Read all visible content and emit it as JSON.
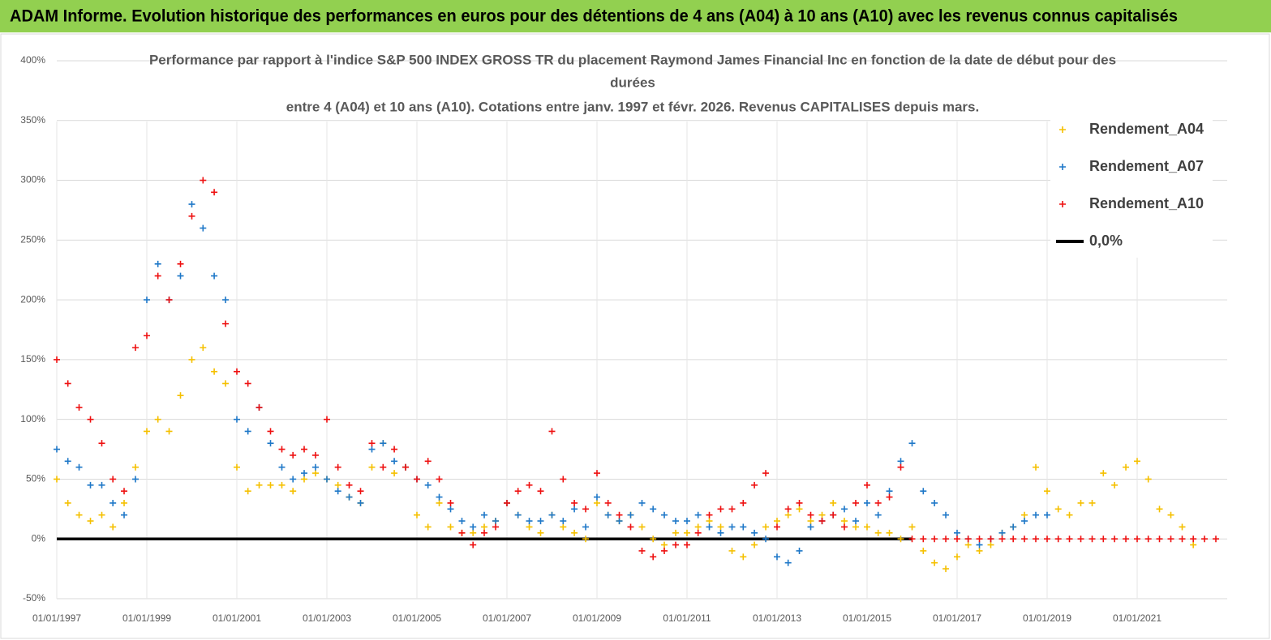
{
  "header": {
    "title": "ADAM Informe. Evolution historique des performances en euros pour des détentions de 4 ans (A04) à 10 ans (A10) avec les revenus connus capitalisés"
  },
  "chart_data": {
    "type": "scatter",
    "title_lines": [
      "Performance par rapport à l'indice S&P 500 INDEX GROSS TR  du placement Raymond James Financial Inc en fonction de la date de début pour des",
      "durées",
      "entre 4 (A04) et 10 ans (A10).  Cotations entre janv. 1997 et févr.  2026. Revenus CAPITALISES depuis mars."
    ],
    "x": [
      "1997-01-01",
      "1997-04-01",
      "1997-07-01",
      "1997-10-01",
      "1998-01-01",
      "1998-04-01",
      "1998-07-01",
      "1998-10-01",
      "1999-01-01",
      "1999-04-01",
      "1999-07-01",
      "1999-10-01",
      "2000-01-01",
      "2000-04-01",
      "2000-07-01",
      "2000-10-01",
      "2001-01-01",
      "2001-04-01",
      "2001-07-01",
      "2001-10-01",
      "2002-01-01",
      "2002-04-01",
      "2002-07-01",
      "2002-10-01",
      "2003-01-01",
      "2003-04-01",
      "2003-07-01",
      "2003-10-01",
      "2004-01-01",
      "2004-04-01",
      "2004-07-01",
      "2004-10-01",
      "2005-01-01",
      "2005-04-01",
      "2005-07-01",
      "2005-10-01",
      "2006-01-01",
      "2006-04-01",
      "2006-07-01",
      "2006-10-01",
      "2007-01-01",
      "2007-04-01",
      "2007-07-01",
      "2007-10-01",
      "2008-01-01",
      "2008-04-01",
      "2008-07-01",
      "2008-10-01",
      "2009-01-01",
      "2009-04-01",
      "2009-07-01",
      "2009-10-01",
      "2010-01-01",
      "2010-04-01",
      "2010-07-01",
      "2010-10-01",
      "2011-01-01",
      "2011-04-01",
      "2011-07-01",
      "2011-10-01",
      "2012-01-01",
      "2012-04-01",
      "2012-07-01",
      "2012-10-01",
      "2013-01-01",
      "2013-04-01",
      "2013-07-01",
      "2013-10-01",
      "2014-01-01",
      "2014-04-01",
      "2014-07-01",
      "2014-10-01",
      "2015-01-01",
      "2015-04-01",
      "2015-07-01",
      "2015-10-01",
      "2016-01-01",
      "2016-04-01",
      "2016-07-01",
      "2016-10-01",
      "2017-01-01",
      "2017-04-01",
      "2017-07-01",
      "2017-10-01",
      "2018-01-01",
      "2018-04-01",
      "2018-07-01",
      "2018-10-01",
      "2019-01-01",
      "2019-04-01",
      "2019-07-01",
      "2019-10-01",
      "2020-01-01",
      "2020-04-01",
      "2020-07-01",
      "2020-10-01",
      "2021-01-01",
      "2021-04-01",
      "2021-07-01",
      "2021-10-01",
      "2022-01-01",
      "2022-04-01",
      "2022-07-01",
      "2022-10-01"
    ],
    "series": [
      {
        "name": "Rendement_A04",
        "color": "#f5c000",
        "values": [
          50,
          30,
          20,
          15,
          20,
          10,
          30,
          60,
          90,
          100,
          90,
          120,
          150,
          160,
          140,
          130,
          60,
          40,
          45,
          45,
          45,
          40,
          50,
          55,
          50,
          45,
          35,
          30,
          60,
          80,
          55,
          60,
          20,
          10,
          30,
          10,
          5,
          5,
          10,
          15,
          30,
          20,
          10,
          5,
          20,
          10,
          5,
          0,
          30,
          20,
          15,
          20,
          10,
          0,
          -5,
          5,
          5,
          10,
          15,
          10,
          -10,
          -15,
          -5,
          10,
          15,
          20,
          25,
          15,
          20,
          30,
          15,
          10,
          10,
          5,
          5,
          0,
          10,
          -10,
          -20,
          -25,
          -15,
          -5,
          -10,
          -5,
          5,
          10,
          20,
          60,
          40,
          25,
          20,
          30,
          30,
          55,
          45,
          60,
          65,
          50,
          25,
          20,
          10,
          -5,
          null,
          null
        ]
      },
      {
        "name": "Rendement_A07",
        "color": "#1f78c8",
        "values": [
          75,
          65,
          60,
          45,
          45,
          30,
          20,
          50,
          200,
          230,
          200,
          220,
          280,
          260,
          220,
          200,
          100,
          90,
          110,
          80,
          60,
          50,
          55,
          60,
          50,
          40,
          35,
          30,
          75,
          80,
          65,
          60,
          50,
          45,
          35,
          25,
          15,
          10,
          20,
          15,
          30,
          20,
          15,
          15,
          20,
          15,
          25,
          10,
          35,
          20,
          15,
          20,
          30,
          25,
          20,
          15,
          15,
          20,
          10,
          5,
          10,
          10,
          5,
          0,
          -15,
          -20,
          -10,
          10,
          15,
          20,
          25,
          15,
          30,
          20,
          40,
          65,
          80,
          40,
          30,
          20,
          5,
          0,
          -5,
          0,
          5,
          10,
          15,
          20,
          20,
          null,
          null,
          null,
          null,
          null,
          null,
          null,
          null,
          null,
          null,
          null,
          null,
          null,
          null,
          null
        ]
      },
      {
        "name": "Rendement_A10",
        "color": "#ee1111",
        "values": [
          150,
          130,
          110,
          100,
          80,
          50,
          40,
          160,
          170,
          220,
          200,
          230,
          270,
          300,
          290,
          180,
          140,
          130,
          110,
          90,
          75,
          70,
          75,
          70,
          100,
          60,
          45,
          40,
          80,
          60,
          75,
          60,
          50,
          65,
          50,
          30,
          5,
          -5,
          5,
          10,
          30,
          40,
          45,
          40,
          90,
          50,
          30,
          25,
          55,
          30,
          20,
          10,
          -10,
          -15,
          -10,
          -5,
          -5,
          5,
          20,
          25,
          25,
          30,
          45,
          55,
          10,
          25,
          30,
          20,
          15,
          20,
          10,
          30,
          45,
          30,
          35,
          60,
          0,
          0,
          0,
          0,
          0,
          0,
          0,
          0,
          0,
          0,
          0,
          0,
          0,
          0,
          0,
          0,
          0,
          0,
          0,
          0,
          0,
          0,
          0,
          0,
          0,
          0,
          0,
          0
        ]
      },
      {
        "name": "0,0%",
        "type": "line",
        "color": "#000000",
        "values": [
          0,
          0,
          0,
          0,
          0,
          0,
          0,
          0,
          0,
          0,
          0,
          0,
          0,
          0,
          0,
          0,
          0,
          0,
          0,
          0,
          0,
          0,
          0,
          0,
          0,
          0,
          0,
          0,
          0,
          0,
          0,
          0,
          0,
          0,
          0,
          0,
          0,
          0,
          0,
          0,
          0,
          0,
          0,
          0,
          0,
          0,
          0,
          0,
          0,
          0,
          0,
          0,
          0,
          0,
          0,
          0,
          0,
          0,
          0,
          0,
          0,
          0,
          0,
          0,
          0,
          0,
          0,
          0,
          0,
          0,
          0,
          0,
          0,
          0,
          0,
          0,
          0,
          null,
          null,
          null,
          null,
          null,
          null,
          null,
          null,
          null,
          null,
          null,
          null,
          null,
          null,
          null,
          null,
          null,
          null,
          null,
          null,
          null,
          null,
          null,
          null,
          null,
          null,
          null
        ]
      }
    ],
    "xlim": [
      "1997-01-01",
      "2023-01-01"
    ],
    "xticks": [
      {
        "value": "1997-01-01",
        "label": "01/01/1997"
      },
      {
        "value": "1999-01-01",
        "label": "01/01/1999"
      },
      {
        "value": "2001-01-01",
        "label": "01/01/2001"
      },
      {
        "value": "2003-01-01",
        "label": "01/01/2003"
      },
      {
        "value": "2005-01-01",
        "label": "01/01/2005"
      },
      {
        "value": "2007-01-01",
        "label": "01/01/2007"
      },
      {
        "value": "2009-01-01",
        "label": "01/01/2009"
      },
      {
        "value": "2011-01-01",
        "label": "01/01/2011"
      },
      {
        "value": "2013-01-01",
        "label": "01/01/2013"
      },
      {
        "value": "2015-01-01",
        "label": "01/01/2015"
      },
      {
        "value": "2017-01-01",
        "label": "01/01/2017"
      },
      {
        "value": "2019-01-01",
        "label": "01/01/2019"
      },
      {
        "value": "2021-01-01",
        "label": "01/01/2021"
      }
    ],
    "ylim": [
      -50,
      400
    ],
    "yticks": [
      {
        "value": -50,
        "label": "-50%"
      },
      {
        "value": 0,
        "label": "0%"
      },
      {
        "value": 50,
        "label": "50%"
      },
      {
        "value": 100,
        "label": "100%"
      },
      {
        "value": 150,
        "label": "150%"
      },
      {
        "value": 200,
        "label": "200%"
      },
      {
        "value": 250,
        "label": "250%"
      },
      {
        "value": 300,
        "label": "300%"
      },
      {
        "value": 350,
        "label": "350%"
      },
      {
        "value": 400,
        "label": "400%"
      }
    ],
    "grid": true,
    "legend": "upper right"
  }
}
